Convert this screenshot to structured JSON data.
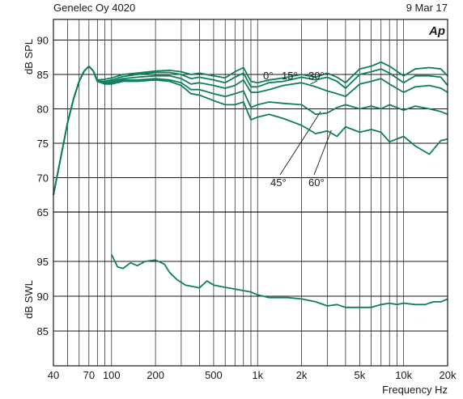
{
  "header": {
    "left": "Genelec Oy 4020",
    "right": "9 Mar 17",
    "logo": "Ap"
  },
  "chart_data": [
    {
      "type": "line",
      "ylabel": "dB SPL",
      "xlabel": "Frequency Hz",
      "xscale": "log",
      "xlim": [
        40,
        20000
      ],
      "ylim": [
        65,
        93
      ],
      "yticks": [
        "70",
        "75",
        "80",
        "85",
        "90"
      ],
      "xticks": [
        {
          "value": 40,
          "label": "40"
        },
        {
          "value": 70,
          "label": "70"
        },
        {
          "value": 100,
          "label": "100"
        },
        {
          "value": 200,
          "label": "200"
        },
        {
          "value": 500,
          "label": "500"
        },
        {
          "value": 1000,
          "label": "1k"
        },
        {
          "value": 2000,
          "label": "2k"
        },
        {
          "value": 5000,
          "label": "5k"
        },
        {
          "value": 10000,
          "label": "10k"
        },
        {
          "value": 20000,
          "label": "20k"
        }
      ],
      "line_color": "#0f7e5f",
      "grid": true,
      "annotations": [
        "0°",
        "15°",
        "30°",
        "45°",
        "60°"
      ],
      "series": [
        {
          "name": "0°",
          "x": [
            40,
            45,
            50,
            55,
            60,
            65,
            70,
            75,
            80,
            90,
            100,
            120,
            150,
            200,
            250,
            300,
            350,
            400,
            500,
            600,
            700,
            800,
            900,
            1000,
            1200,
            1500,
            2000,
            2500,
            3000,
            3500,
            4000,
            5000,
            6000,
            7000,
            8000,
            10000,
            12000,
            15000,
            18000,
            20000
          ],
          "y": [
            67.5,
            73,
            78,
            81.5,
            84,
            85.5,
            86.2,
            85.5,
            84.2,
            84.3,
            84.5,
            85,
            85.2,
            85.5,
            85.6,
            85.4,
            85,
            85.2,
            84.8,
            84.5,
            85.4,
            86,
            84,
            83.8,
            84.2,
            84.5,
            85,
            84.6,
            85.2,
            84.6,
            83.8,
            85.8,
            86.2,
            86.8,
            86.2,
            84.8,
            85.8,
            86,
            85.8,
            84.8
          ]
        },
        {
          "name": "15°",
          "x": [
            40,
            45,
            50,
            55,
            60,
            65,
            70,
            75,
            80,
            90,
            100,
            120,
            150,
            200,
            250,
            300,
            350,
            400,
            500,
            600,
            700,
            800,
            900,
            1000,
            1200,
            1500,
            2000,
            2500,
            3000,
            3500,
            4000,
            5000,
            6000,
            7000,
            8000,
            10000,
            12000,
            15000,
            18000,
            20000
          ],
          "y": [
            67.5,
            73,
            78,
            81.5,
            84,
            85.5,
            86.2,
            85.5,
            84,
            84,
            84.2,
            84.7,
            85,
            85.3,
            85.3,
            85,
            84.4,
            84.6,
            84.2,
            83.8,
            84.6,
            85.2,
            83.2,
            83.2,
            83.8,
            84,
            84.6,
            84.2,
            84.6,
            84,
            83,
            85,
            85.4,
            85.8,
            85.2,
            83.8,
            84.8,
            84.8,
            84.6,
            83.4
          ]
        },
        {
          "name": "30°",
          "x": [
            40,
            45,
            50,
            55,
            60,
            65,
            70,
            75,
            80,
            90,
            100,
            120,
            150,
            200,
            250,
            300,
            350,
            400,
            500,
            600,
            700,
            800,
            900,
            1000,
            1200,
            1500,
            2000,
            2500,
            3000,
            3500,
            4000,
            5000,
            6000,
            7000,
            8000,
            10000,
            12000,
            15000,
            18000,
            20000
          ],
          "y": [
            67.5,
            73,
            78,
            81.5,
            84,
            85.5,
            86.2,
            85.5,
            84,
            84,
            84,
            84.4,
            84.6,
            84.8,
            84.8,
            84.4,
            83.6,
            83.8,
            83.4,
            83,
            83.4,
            84.2,
            82.4,
            82.4,
            82.8,
            83.4,
            83.8,
            83.2,
            82.6,
            82.2,
            81.8,
            83.6,
            84,
            84.4,
            83.6,
            82.4,
            83.2,
            83.4,
            83,
            82.4
          ]
        },
        {
          "name": "45°",
          "x": [
            40,
            45,
            50,
            55,
            60,
            65,
            70,
            75,
            80,
            90,
            100,
            120,
            150,
            200,
            250,
            300,
            350,
            400,
            500,
            600,
            700,
            800,
            900,
            1000,
            1200,
            1500,
            2000,
            2500,
            3000,
            3500,
            4000,
            5000,
            6000,
            7000,
            8000,
            10000,
            12000,
            15000,
            18000,
            20000
          ],
          "y": [
            67.5,
            73,
            78,
            81.5,
            84,
            85.5,
            86.2,
            85.5,
            84,
            83.8,
            83.8,
            84.2,
            84.2,
            84.4,
            84.2,
            83.8,
            82.8,
            82.8,
            82.2,
            81.8,
            82.2,
            82.6,
            80.2,
            80.6,
            81,
            80.8,
            80.6,
            79.2,
            79.4,
            80.2,
            80.6,
            80,
            80.4,
            80,
            80.6,
            79.8,
            80.4,
            80,
            79.6,
            79.2
          ]
        },
        {
          "name": "60°",
          "x": [
            40,
            45,
            50,
            55,
            60,
            65,
            70,
            75,
            80,
            90,
            100,
            120,
            150,
            200,
            250,
            300,
            350,
            400,
            500,
            600,
            700,
            800,
            900,
            1000,
            1200,
            1500,
            2000,
            2500,
            3000,
            3500,
            4000,
            5000,
            6000,
            7000,
            8000,
            10000,
            12000,
            15000,
            18000,
            20000
          ],
          "y": [
            67.5,
            73,
            78,
            81.5,
            84,
            85.5,
            86.2,
            85.5,
            84,
            83.6,
            83.6,
            84,
            84,
            84.2,
            84,
            83.4,
            82.2,
            82,
            81.2,
            80.6,
            80.6,
            81,
            78.4,
            78.8,
            79.2,
            78.6,
            77.6,
            76.4,
            76.8,
            76,
            77.4,
            76.6,
            77,
            76.6,
            75.2,
            76,
            74.6,
            73.4,
            75.4,
            75.6
          ]
        }
      ]
    },
    {
      "type": "line",
      "ylabel": "dB SWL",
      "xscale": "log",
      "xlim": [
        40,
        20000
      ],
      "ylim": [
        81,
        97
      ],
      "yticks": [
        "85",
        "90",
        "95"
      ],
      "line_color": "#0f7e5f",
      "grid": true,
      "series": [
        {
          "name": "",
          "x": [
            100,
            110,
            120,
            135,
            150,
            170,
            200,
            230,
            250,
            280,
            320,
            360,
            400,
            450,
            500,
            560,
            630,
            710,
            800,
            900,
            1000,
            1200,
            1400,
            1600,
            2000,
            2500,
            3000,
            3500,
            4000,
            5000,
            6000,
            7000,
            8000,
            9000,
            10000,
            12000,
            14000,
            16000,
            18000,
            20000
          ],
          "y": [
            96,
            94.2,
            94,
            94.8,
            94.4,
            95,
            95.2,
            94.6,
            93.4,
            92.4,
            91.6,
            91.4,
            91.2,
            92.2,
            91.6,
            91.4,
            91.2,
            91,
            90.8,
            90.6,
            90.2,
            89.8,
            89.8,
            89.8,
            89.6,
            89.2,
            88.6,
            88.8,
            88.4,
            88.4,
            88.4,
            88.8,
            89,
            88.8,
            89,
            88.8,
            88.8,
            89.2,
            89.2,
            89.6
          ]
        }
      ]
    }
  ]
}
